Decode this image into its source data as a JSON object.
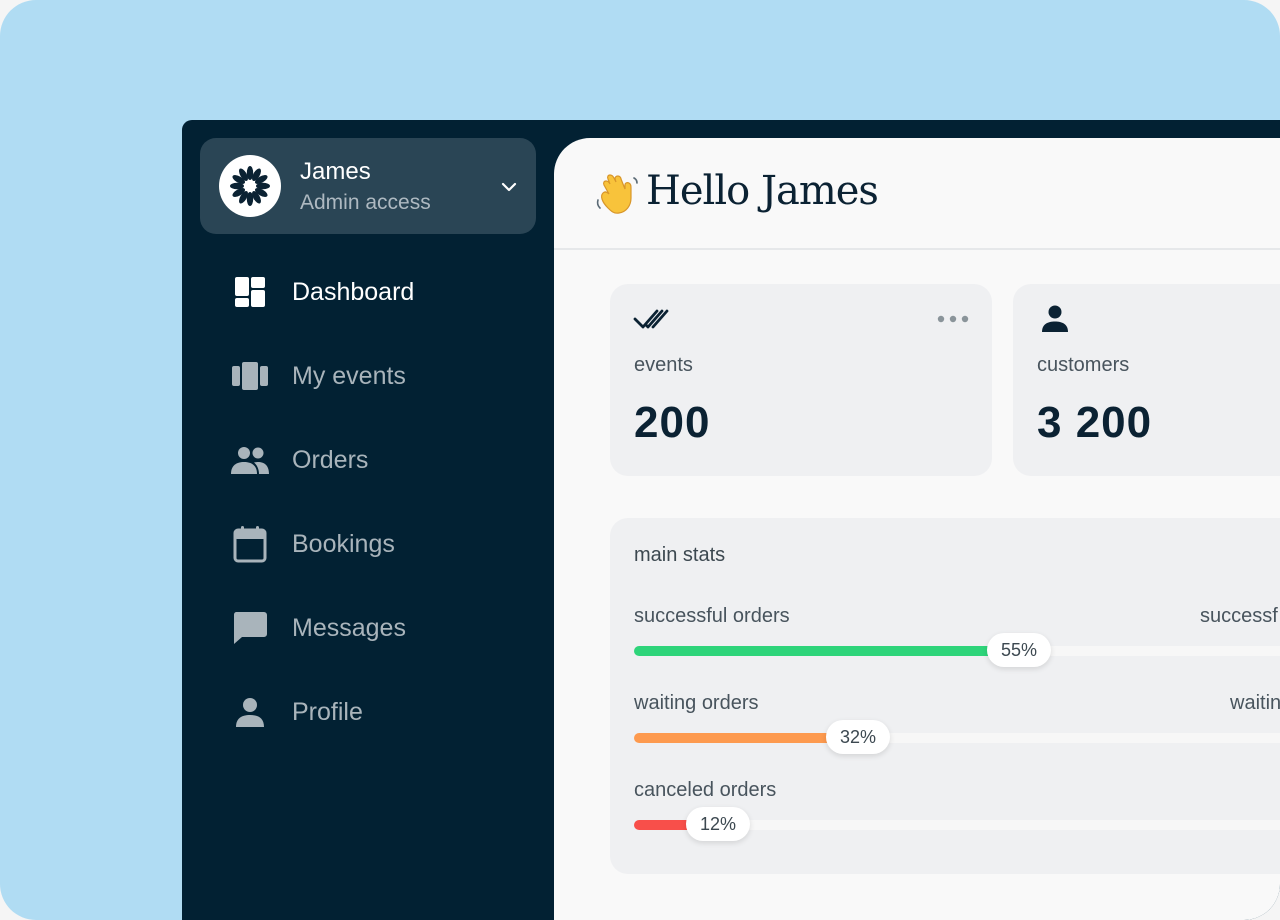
{
  "user": {
    "name": "James",
    "role": "Admin access"
  },
  "nav": {
    "items": [
      {
        "label": "Dashboard",
        "icon": "dashboard-icon",
        "active": true
      },
      {
        "label": "My events",
        "icon": "events-icon",
        "active": false
      },
      {
        "label": "Orders",
        "icon": "people-icon",
        "active": false
      },
      {
        "label": "Bookings",
        "icon": "calendar-icon",
        "active": false
      },
      {
        "label": "Messages",
        "icon": "chat-icon",
        "active": false
      },
      {
        "label": "Profile",
        "icon": "person-icon",
        "active": false
      }
    ]
  },
  "header": {
    "greeting": "Hello James",
    "emoji": "👋"
  },
  "cards": {
    "events": {
      "label": "events",
      "value": "200"
    },
    "customers": {
      "label": "customers",
      "value": "3 200"
    }
  },
  "stats": {
    "title": "main stats",
    "bars": [
      {
        "label": "successful orders",
        "right_label": "successf",
        "percent": 55,
        "percent_label": "55%",
        "color": "#2ed47a"
      },
      {
        "label": "waiting orders",
        "right_label": "waitin",
        "percent": 32,
        "percent_label": "32%",
        "color": "#fd9a4f"
      },
      {
        "label": "canceled orders",
        "right_label": "",
        "percent": 12,
        "percent_label": "12%",
        "color": "#f84f4a"
      }
    ]
  },
  "colors": {
    "background": "#b0dcf3",
    "sidebar": "#022133",
    "user_card": "#2a4555",
    "panel": "#f9f9f9",
    "card": "#eff0f2",
    "text_dark": "#0b2233"
  }
}
